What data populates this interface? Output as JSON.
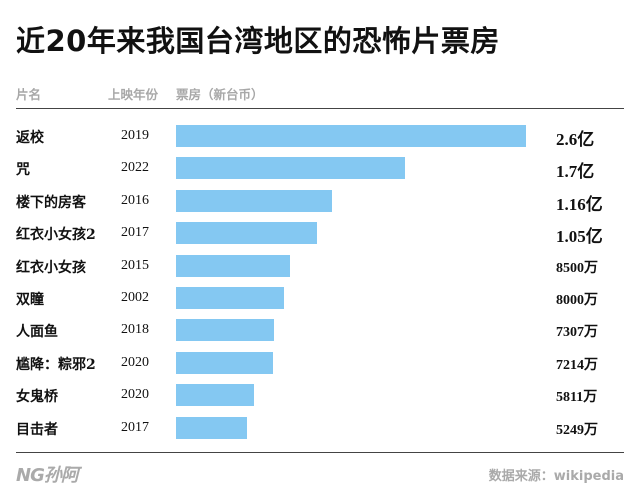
{
  "title": "近20年来我国台湾地区的恐怖片票房",
  "header": {
    "col_name": "片名",
    "col_year": "上映年份",
    "col_box": "票房（新台币）"
  },
  "logo_text": "NG孙阿",
  "source": "数据来源：wikipedia",
  "colors": {
    "bar": "#84c8f2",
    "header": "#a8a8a8",
    "rule": "#444444"
  },
  "chart_data": {
    "type": "bar",
    "orientation": "horizontal",
    "title": "近20年来我国台湾地区的恐怖片票房",
    "categories": [
      "返校",
      "咒",
      "楼下的房客",
      "红衣小女孩2",
      "红衣小女孩",
      "双瞳",
      "人面鱼",
      "尴降：粽邪2",
      "女鬼桥",
      "目击者"
    ],
    "years": [
      "2019",
      "2022",
      "2016",
      "2017",
      "2015",
      "2002",
      "2018",
      "2020",
      "2020",
      "2017"
    ],
    "values": [
      26000,
      17000,
      11600,
      10500,
      8500,
      8000,
      7307,
      7214,
      5811,
      5249
    ],
    "value_unit": "万",
    "labels": [
      "2.6亿",
      "1.7亿",
      "1.16亿",
      "1.05亿",
      "8500万",
      "8000万",
      "7307万",
      "7214万",
      "5811万",
      "5249万"
    ]
  }
}
